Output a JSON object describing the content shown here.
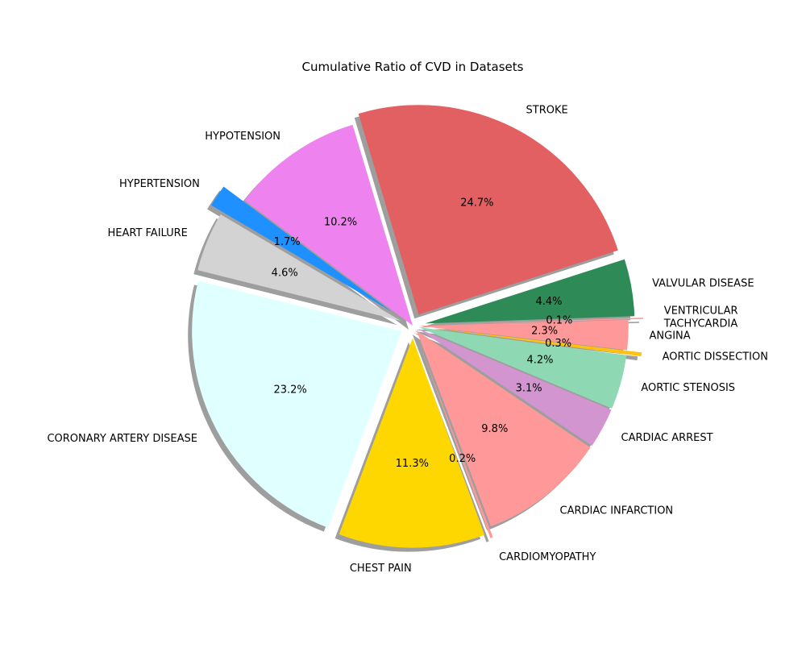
{
  "chart_data": {
    "type": "pie",
    "title": "Cumulative Ratio of CVD in Datasets",
    "start_angle_deg": 2,
    "direction": "counterclockwise",
    "shadow": true,
    "slices": [
      {
        "label": "VALVULAR DISEASE",
        "value": 4.4,
        "pct_label": "4.4%",
        "color": "#2e8b57",
        "explode": 0.06
      },
      {
        "label": "STROKE",
        "value": 24.7,
        "pct_label": "24.7%",
        "color": "#e36062",
        "explode": 0.06
      },
      {
        "label": "HYPOTENSION",
        "value": 10.2,
        "pct_label": "10.2%",
        "color": "#ee82ee",
        "explode": 0.0
      },
      {
        "label": "HYPERTENSION",
        "value": 1.7,
        "pct_label": "1.7%",
        "color": "#1e90ff",
        "explode": 0.12
      },
      {
        "label": "HEART FAILURE",
        "value": 4.6,
        "pct_label": "4.6%",
        "color": "#d3d3d3",
        "explode": 0.06
      },
      {
        "label": "CORONARY ARTERY DISEASE",
        "value": 23.2,
        "pct_label": "23.2%",
        "color": "#e0ffff",
        "explode": 0.06
      },
      {
        "label": "CHEST PAIN",
        "value": 11.3,
        "pct_label": "11.3%",
        "color": "#ffd700",
        "explode": 0.06
      },
      {
        "label": "CARDIOMYOPATHY",
        "value": 0.2,
        "pct_label": "0.2%",
        "color": "#ff9999",
        "explode": 0.08
      },
      {
        "label": "CARDIAC INFARCTION",
        "value": 9.8,
        "pct_label": "9.8%",
        "color": "#ff9999",
        "explode": 0.03
      },
      {
        "label": "CARDIAC ARREST",
        "value": 3.1,
        "pct_label": "3.1%",
        "color": "#d395d0",
        "explode": 0.03
      },
      {
        "label": "AORTIC STENOSIS",
        "value": 4.2,
        "pct_label": "4.2%",
        "color": "#8fd8b4",
        "explode": 0.03
      },
      {
        "label": "AORTIC DISSECTION",
        "value": 0.3,
        "pct_label": "0.3%",
        "color": "#ffc20e",
        "explode": 0.1
      },
      {
        "label": "ANGINA",
        "value": 2.3,
        "pct_label": "2.3%",
        "color": "#ff9999",
        "explode": 0.03
      },
      {
        "label": "VENTRICULAR\nTACHYCARDIA",
        "value": 0.1,
        "pct_label": "0.1%",
        "color": "#ff9999",
        "explode": 0.1
      }
    ]
  }
}
